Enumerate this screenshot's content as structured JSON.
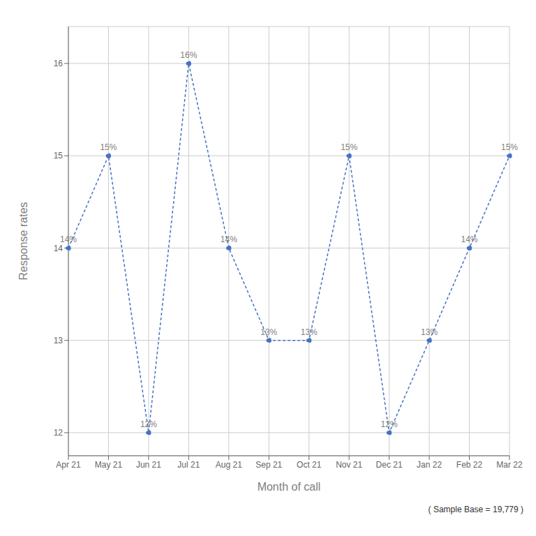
{
  "chart_data": {
    "type": "line",
    "x_label": "Month of call",
    "y_label": "Response rates",
    "categories": [
      "Apr 21",
      "May 21",
      "Jun 21",
      "Jul 21",
      "Aug 21",
      "Sep 21",
      "Oct 21",
      "Nov 21",
      "Dec 21",
      "Jan 22",
      "Feb 22",
      "Mar 22"
    ],
    "values": [
      14,
      15,
      12,
      16,
      14,
      13,
      13,
      15,
      12,
      13,
      14,
      15
    ],
    "value_labels": [
      "14%",
      "15%",
      "12%",
      "16%",
      "14%",
      "13%",
      "13%",
      "15%",
      "12%",
      "13%",
      "14%",
      "15%"
    ],
    "data_labels": true,
    "color": "#4472C4",
    "line_style": "dashed",
    "marker": "circle",
    "ylim": [
      11.75,
      16.4
    ],
    "yticks": [
      12,
      13,
      14,
      15,
      16
    ],
    "grid": true,
    "annotations": [
      "( Sample Base = 19,779 )"
    ]
  }
}
